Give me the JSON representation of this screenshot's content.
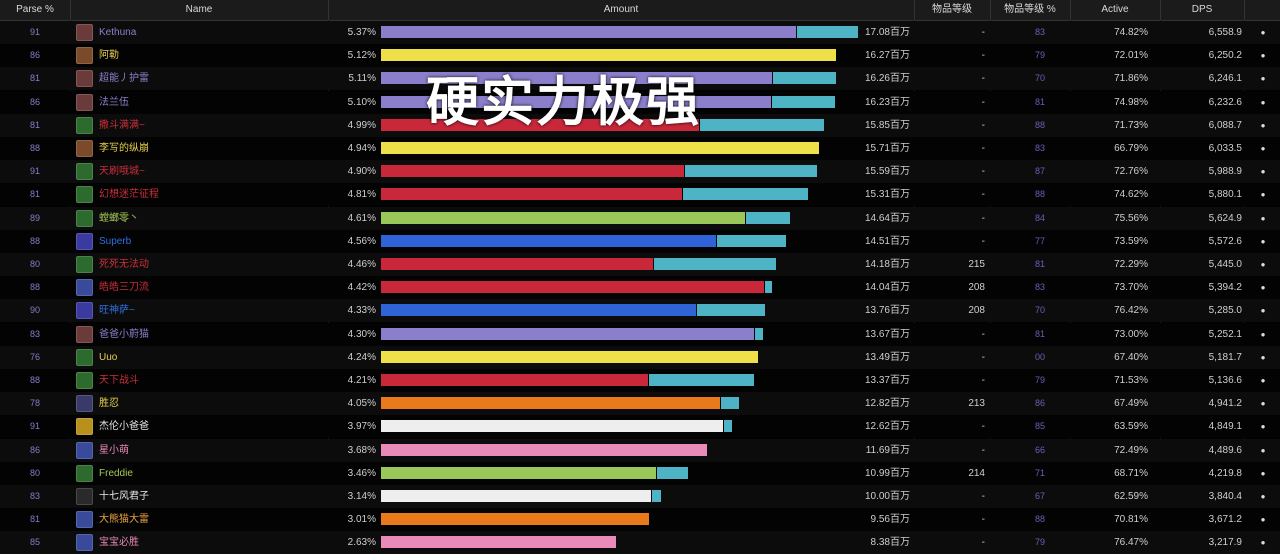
{
  "headers": {
    "parse": "Parse %",
    "name": "Name",
    "amount": "Amount",
    "ilvl": "物品等级",
    "ilvl_pct": "物品等级 %",
    "active": "Active",
    "dps": "DPS"
  },
  "overlay_text": "硬实力极强",
  "colors": {
    "bar_secondary": "#4fb3c6",
    "parse_text": "#8a7cc9",
    "ilvl_pct_text": "#6a5fb8"
  },
  "rows": [
    {
      "parse": "91",
      "name": "Kethuna",
      "name_color": "#8c7fcc",
      "icon": "warlock-icon",
      "icon_color": "#6b3a3a",
      "pct": "5.37%",
      "bar_color": "#8b7fcb",
      "bar_main": 0.869,
      "bar_total": 1.0,
      "amount": "17.08百万",
      "ilvl": "-",
      "ilvl_pct": "83",
      "active": "74.82%",
      "dps": "6,558.9"
    },
    {
      "parse": "86",
      "name": "阿勒",
      "name_color": "#e8d04e",
      "icon": "rogue-icon",
      "icon_color": "#7a4a2a",
      "pct": "5.12%",
      "bar_color": "#efe04a",
      "bar_main": 0.953,
      "bar_total": 0.953,
      "amount": "16.27百万",
      "ilvl": "-",
      "ilvl_pct": "79",
      "active": "72.01%",
      "dps": "6,250.2"
    },
    {
      "parse": "81",
      "name": "超能丿护雷",
      "name_color": "#8c7fcc",
      "icon": "warlock-icon",
      "icon_color": "#6b3a3a",
      "pct": "5.11%",
      "bar_color": "#8b7fcb",
      "bar_main": 0.82,
      "bar_total": 0.953,
      "amount": "16.26百万",
      "ilvl": "-",
      "ilvl_pct": "70",
      "active": "71.86%",
      "dps": "6,246.1"
    },
    {
      "parse": "86",
      "name": "法兰伍",
      "name_color": "#8c7fcc",
      "icon": "warlock-icon",
      "icon_color": "#6b3a3a",
      "pct": "5.10%",
      "bar_color": "#8b7fcb",
      "bar_main": 0.818,
      "bar_total": 0.951,
      "amount": "16.23百万",
      "ilvl": "-",
      "ilvl_pct": "81",
      "active": "74.98%",
      "dps": "6,232.6"
    },
    {
      "parse": "81",
      "name": "撒斗满满~",
      "name_color": "#c8303a",
      "icon": "dk-icon",
      "icon_color": "#2d6a2d",
      "pct": "4.99%",
      "bar_color": "#c8283a",
      "bar_main": 0.667,
      "bar_total": 0.929,
      "amount": "15.85百万",
      "ilvl": "-",
      "ilvl_pct": "88",
      "active": "71.73%",
      "dps": "6,088.7"
    },
    {
      "parse": "88",
      "name": "李写的纵崩",
      "name_color": "#e8d04e",
      "icon": "rogue-icon",
      "icon_color": "#7a4a2a",
      "pct": "4.94%",
      "bar_color": "#efe04a",
      "bar_main": 0.919,
      "bar_total": 0.919,
      "amount": "15.71百万",
      "ilvl": "-",
      "ilvl_pct": "83",
      "active": "66.79%",
      "dps": "6,033.5"
    },
    {
      "parse": "91",
      "name": "天刷哦城~",
      "name_color": "#c8303a",
      "icon": "dk-icon",
      "icon_color": "#2d6a2d",
      "pct": "4.90%",
      "bar_color": "#c8283a",
      "bar_main": 0.636,
      "bar_total": 0.913,
      "amount": "15.59百万",
      "ilvl": "-",
      "ilvl_pct": "87",
      "active": "72.76%",
      "dps": "5,988.9"
    },
    {
      "parse": "81",
      "name": "幻想迷茫征程",
      "name_color": "#c8303a",
      "icon": "dk-icon",
      "icon_color": "#2d6a2d",
      "pct": "4.81%",
      "bar_color": "#c8283a",
      "bar_main": 0.632,
      "bar_total": 0.896,
      "amount": "15.31百万",
      "ilvl": "-",
      "ilvl_pct": "88",
      "active": "74.62%",
      "dps": "5,880.1"
    },
    {
      "parse": "89",
      "name": "螳螂零丶",
      "name_color": "#a6c955",
      "icon": "hunter-icon",
      "icon_color": "#2d6a2d",
      "pct": "4.61%",
      "bar_color": "#9ac75a",
      "bar_main": 0.764,
      "bar_total": 0.857,
      "amount": "14.64百万",
      "ilvl": "-",
      "ilvl_pct": "84",
      "active": "75.56%",
      "dps": "5,624.9"
    },
    {
      "parse": "88",
      "name": "Superb",
      "name_color": "#2f6fe0",
      "icon": "shaman-icon",
      "icon_color": "#3a3aa0",
      "pct": "4.56%",
      "bar_color": "#2f63d8",
      "bar_main": 0.702,
      "bar_total": 0.849,
      "amount": "14.51百万",
      "ilvl": "-",
      "ilvl_pct": "77",
      "active": "73.59%",
      "dps": "5,572.6"
    },
    {
      "parse": "80",
      "name": "死死无法动",
      "name_color": "#c8303a",
      "icon": "dk-icon",
      "icon_color": "#2d6a2d",
      "pct": "4.46%",
      "bar_color": "#c8283a",
      "bar_main": 0.57,
      "bar_total": 0.829,
      "amount": "14.18百万",
      "ilvl": "215",
      "ilvl_pct": "81",
      "active": "72.29%",
      "dps": "5,445.0"
    },
    {
      "parse": "88",
      "name": "皓皓三刀流",
      "name_color": "#c8303a",
      "icon": "dk-icon",
      "icon_color": "#3a4a9a",
      "pct": "4.42%",
      "bar_color": "#c8283a",
      "bar_main": 0.802,
      "bar_total": 0.82,
      "amount": "14.04百万",
      "ilvl": "208",
      "ilvl_pct": "83",
      "active": "73.70%",
      "dps": "5,394.2"
    },
    {
      "parse": "90",
      "name": "旺神萨~",
      "name_color": "#2f6fe0",
      "icon": "shaman-icon",
      "icon_color": "#3a3aa0",
      "pct": "4.33%",
      "bar_color": "#2f63d8",
      "bar_main": 0.66,
      "bar_total": 0.805,
      "amount": "13.76百万",
      "ilvl": "208",
      "ilvl_pct": "70",
      "active": "76.42%",
      "dps": "5,285.0"
    },
    {
      "parse": "83",
      "name": "爸爸小蔚猫",
      "name_color": "#8c7fcc",
      "icon": "warlock-icon",
      "icon_color": "#6b3a3a",
      "pct": "4.30%",
      "bar_color": "#8b7fcb",
      "bar_main": 0.783,
      "bar_total": 0.8,
      "amount": "13.67百万",
      "ilvl": "-",
      "ilvl_pct": "81",
      "active": "73.00%",
      "dps": "5,252.1"
    },
    {
      "parse": "76",
      "name": "Uuo",
      "name_color": "#e8d04e",
      "icon": "rogue-icon",
      "icon_color": "#2d6a2d",
      "pct": "4.24%",
      "bar_color": "#efe04a",
      "bar_main": 0.79,
      "bar_total": 0.79,
      "amount": "13.49百万",
      "ilvl": "-",
      "ilvl_pct": "00",
      "active": "67.40%",
      "dps": "5,181.7"
    },
    {
      "parse": "88",
      "name": "天下战斗",
      "name_color": "#c8303a",
      "icon": "dk-icon",
      "icon_color": "#2d6a2d",
      "pct": "4.21%",
      "bar_color": "#c8283a",
      "bar_main": 0.56,
      "bar_total": 0.783,
      "amount": "13.37百万",
      "ilvl": "-",
      "ilvl_pct": "79",
      "active": "71.53%",
      "dps": "5,136.6"
    },
    {
      "parse": "78",
      "name": "胜忍",
      "name_color": "#e8d04e",
      "icon": "druid-icon",
      "icon_color": "#3a3a6a",
      "pct": "4.05%",
      "bar_color": "#e87a1c",
      "bar_main": 0.71,
      "bar_total": 0.75,
      "amount": "12.82百万",
      "ilvl": "213",
      "ilvl_pct": "86",
      "active": "67.49%",
      "dps": "4,941.2"
    },
    {
      "parse": "91",
      "name": "杰伦小爸爸",
      "name_color": "#e8e8e8",
      "icon": "priest-icon",
      "icon_color": "#b8901c",
      "pct": "3.97%",
      "bar_color": "#eeeeee",
      "bar_main": 0.716,
      "bar_total": 0.735,
      "amount": "12.62百万",
      "ilvl": "-",
      "ilvl_pct": "85",
      "active": "63.59%",
      "dps": "4,849.1"
    },
    {
      "parse": "86",
      "name": "星小萌",
      "name_color": "#e888b8",
      "icon": "paladin-icon",
      "icon_color": "#3a4a9a",
      "pct": "3.68%",
      "bar_color": "#e98ab9",
      "bar_main": 0.684,
      "bar_total": 0.684,
      "amount": "11.69百万",
      "ilvl": "-",
      "ilvl_pct": "66",
      "active": "72.49%",
      "dps": "4,489.6"
    },
    {
      "parse": "80",
      "name": "Freddie",
      "name_color": "#a6c955",
      "icon": "hunter-icon",
      "icon_color": "#2d6a2d",
      "pct": "3.46%",
      "bar_color": "#9ac75a",
      "bar_main": 0.577,
      "bar_total": 0.643,
      "amount": "10.99百万",
      "ilvl": "214",
      "ilvl_pct": "71",
      "active": "68.71%",
      "dps": "4,219.8"
    },
    {
      "parse": "83",
      "name": "十七风君子",
      "name_color": "#e8e8e8",
      "icon": "priest-icon",
      "icon_color": "#2a2a2a",
      "pct": "3.14%",
      "bar_color": "#eeeeee",
      "bar_main": 0.567,
      "bar_total": 0.586,
      "amount": "10.00百万",
      "ilvl": "-",
      "ilvl_pct": "67",
      "active": "62.59%",
      "dps": "3,840.4"
    },
    {
      "parse": "81",
      "name": "大熊猫大雷",
      "name_color": "#e8a040",
      "icon": "druid-icon",
      "icon_color": "#3a4a9a",
      "pct": "3.01%",
      "bar_color": "#e87a1c",
      "bar_main": 0.562,
      "bar_total": 0.562,
      "amount": "9.56百万",
      "ilvl": "-",
      "ilvl_pct": "88",
      "active": "70.81%",
      "dps": "3,671.2"
    },
    {
      "parse": "85",
      "name": "宝宝必胜",
      "name_color": "#e888b8",
      "icon": "paladin-icon",
      "icon_color": "#3a4a9a",
      "pct": "2.63%",
      "bar_color": "#e98ab9",
      "bar_main": 0.492,
      "bar_total": 0.492,
      "amount": "8.38百万",
      "ilvl": "-",
      "ilvl_pct": "79",
      "active": "76.47%",
      "dps": "3,217.9"
    }
  ]
}
